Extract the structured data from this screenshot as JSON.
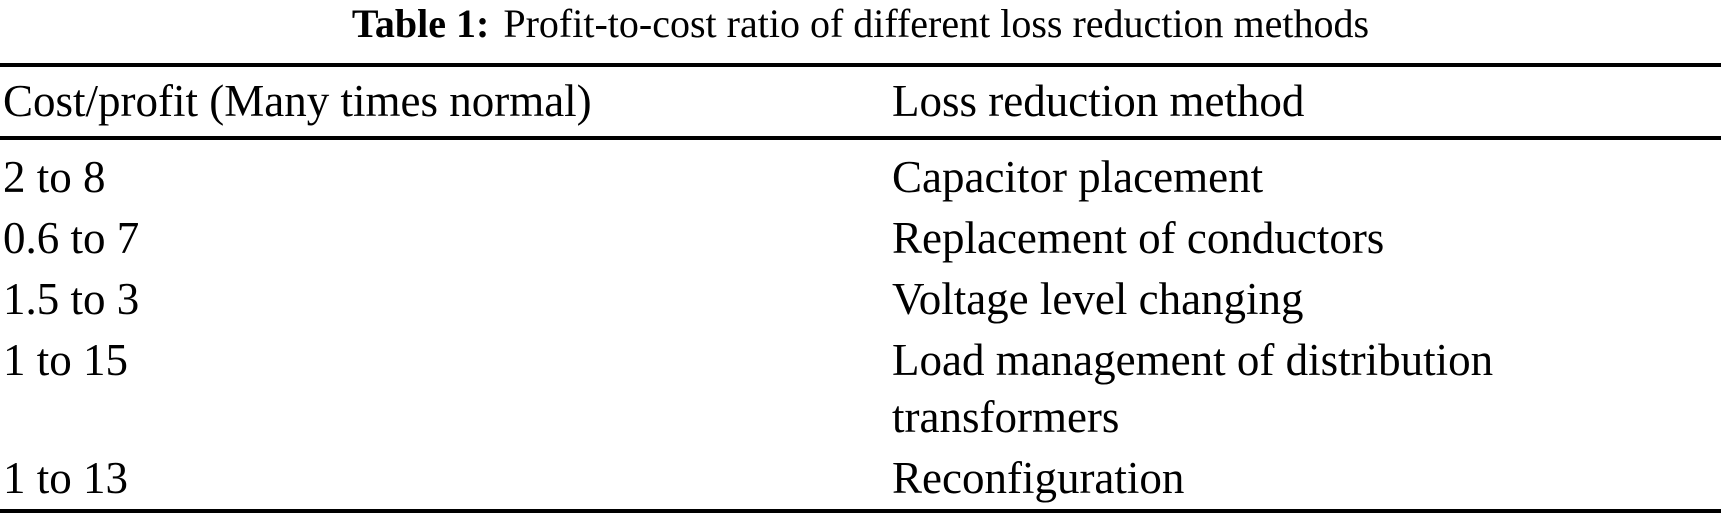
{
  "caption": {
    "label": "Table 1:",
    "text": "Profit-to-cost ratio of different loss reduction methods"
  },
  "table": {
    "columns": [
      "Cost/profit (Many times normal)",
      "Loss reduction method"
    ],
    "rows": [
      {
        "cost_profit": "2 to 8",
        "method": "Capacitor placement"
      },
      {
        "cost_profit": "0.6 to 7",
        "method": "Replacement of conductors"
      },
      {
        "cost_profit": "1.5 to 3",
        "method": "Voltage level changing"
      },
      {
        "cost_profit": "1 to 15",
        "method": "Load management of distribution transformers"
      },
      {
        "cost_profit": "1 to 13",
        "method": "Reconfiguration"
      }
    ]
  },
  "colors": {
    "background": "#ffffff",
    "text": "#000000",
    "rule": "#000000"
  }
}
